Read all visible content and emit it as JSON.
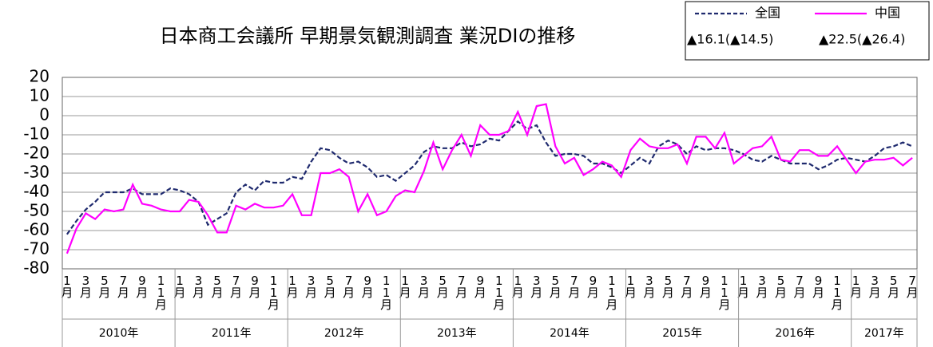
{
  "chart_data": {
    "type": "line",
    "title": "日本商工会議所 早期景気観測調査 業況DIの推移",
    "categories": [
      "1月",
      null,
      "3月",
      null,
      "5月",
      null,
      "7月",
      null,
      "9月",
      null,
      "11月",
      null,
      "1月",
      null,
      "3月",
      null,
      "5月",
      null,
      "7月",
      null,
      "9月",
      null,
      "11月",
      null,
      "1月",
      null,
      "3月",
      null,
      "5月",
      null,
      "7月",
      null,
      "9月",
      null,
      "11月",
      null,
      "1月",
      null,
      "3月",
      null,
      "5月",
      null,
      "7月",
      null,
      "9月",
      null,
      "11月",
      null,
      "1月",
      null,
      "3月",
      null,
      "5月",
      null,
      "7月",
      null,
      "9月",
      null,
      "11月",
      null,
      "1月",
      null,
      "3月",
      null,
      "5月",
      null,
      "7月",
      null,
      "9月",
      null,
      "11月",
      null,
      "1月",
      null,
      "3月",
      null,
      "5月",
      null,
      "7月",
      null,
      "9月",
      null,
      "11月",
      null,
      "1月",
      null,
      "3月",
      null,
      "5月",
      null,
      "7月"
    ],
    "years": [
      "2010年",
      "2011年",
      "2012年",
      "2013年",
      "2014年",
      "2015年",
      "2016年",
      "2017年"
    ],
    "series": [
      {
        "name": "全国",
        "note": "▲16.1(▲14.5)",
        "color": "#1f2a6e",
        "dash": true,
        "values": [
          -62,
          -55,
          -49,
          -45,
          -40,
          -40,
          -40,
          -38,
          -41,
          -41,
          -41,
          -38,
          -39,
          -41,
          -45,
          -57,
          -54,
          -51,
          -40,
          -36,
          -39,
          -34,
          -35,
          -35,
          -32,
          -33,
          -24,
          -17,
          -18,
          -22,
          -25,
          -24,
          -27,
          -32,
          -31,
          -34,
          -30,
          -26,
          -19,
          -16,
          -17,
          -17,
          -14,
          -16,
          -15,
          -12,
          -13,
          -8,
          -3,
          -7,
          -5,
          -14,
          -21,
          -20,
          -20,
          -21,
          -25,
          -25,
          -27,
          -30,
          -26,
          -22,
          -25,
          -16,
          -13,
          -15,
          -20,
          -16,
          -18,
          -17,
          -17,
          -18,
          -20,
          -23,
          -24,
          -21,
          -23,
          -25,
          -25,
          -25,
          -28,
          -26,
          -23,
          -22,
          -23,
          -24,
          -21,
          -17,
          -16,
          -14,
          -16
        ]
      },
      {
        "name": "中国",
        "note": "▲22.5(▲26.4)",
        "color": "#ff00ff",
        "dash": false,
        "values": [
          -72,
          -59,
          -51,
          -54,
          -49,
          -50,
          -49,
          -36,
          -46,
          -47,
          -49,
          -50,
          -50,
          -44,
          -45,
          -52,
          -61,
          -61,
          -47,
          -49,
          -46,
          -48,
          -48,
          -47,
          -41,
          -52,
          -52,
          -30,
          -30,
          -28,
          -32,
          -50,
          -41,
          -52,
          -50,
          -42,
          -39,
          -40,
          -29,
          -14,
          -28,
          -18,
          -10,
          -21,
          -5,
          -10,
          -10,
          -8,
          2,
          -10,
          5,
          6,
          -16,
          -25,
          -22,
          -31,
          -28,
          -24,
          -26,
          -32,
          -18,
          -12,
          -16,
          -17,
          -17,
          -15,
          -25,
          -11,
          -11,
          -17,
          -9,
          -25,
          -21,
          -17,
          -16,
          -11,
          -23,
          -24,
          -18,
          -18,
          -21,
          -21,
          -16,
          -23,
          -30,
          -24,
          -23,
          -23,
          -22,
          -26,
          -22
        ]
      }
    ],
    "ylim": [
      -80,
      20
    ],
    "yticks": [
      -80,
      -70,
      -60,
      -50,
      -40,
      -30,
      -20,
      -10,
      0,
      10,
      20
    ],
    "grid": true
  }
}
